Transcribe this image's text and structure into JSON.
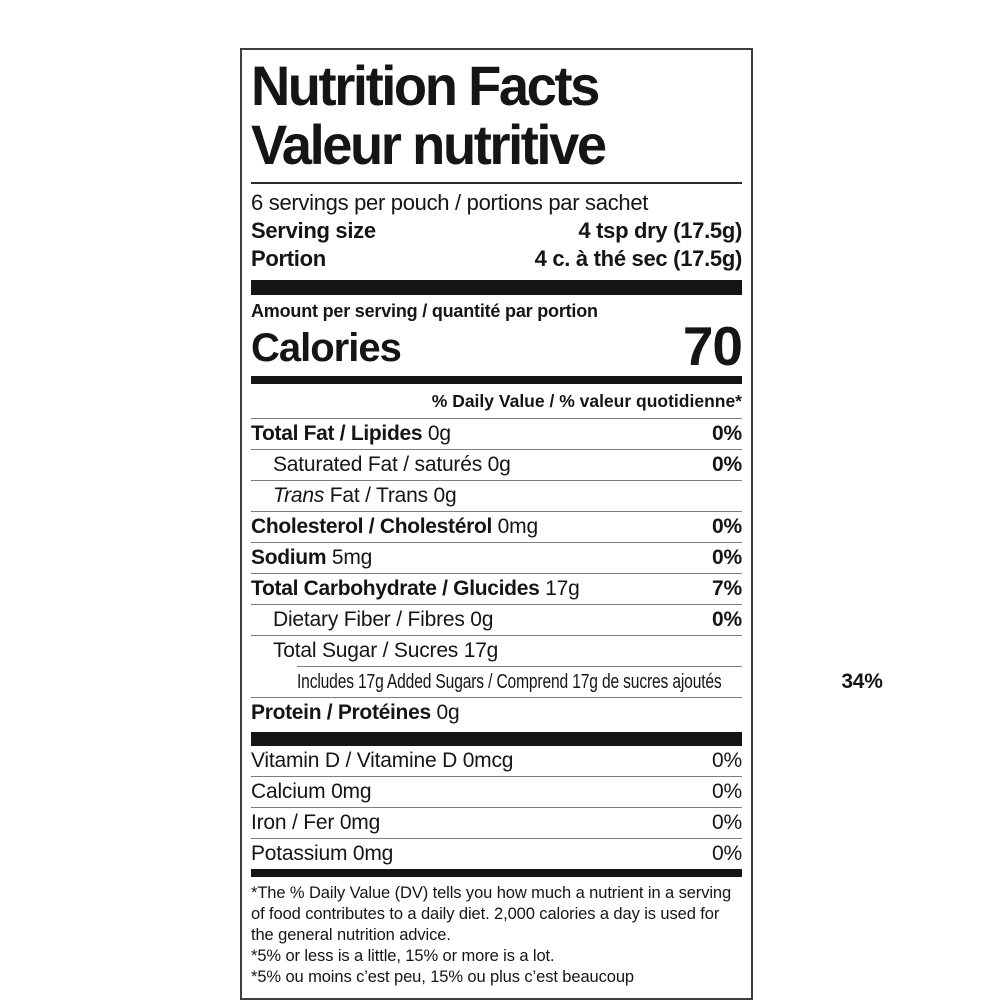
{
  "title": {
    "en": "Nutrition Facts",
    "fr": "Valeur nutritive"
  },
  "serving": {
    "servings_per_container": "6 servings per pouch / portions par sachet",
    "size_label_en": "Serving size",
    "size_value_en": "4 tsp dry (17.5g)",
    "size_label_fr": "Portion",
    "size_value_fr": "4 c. à thé sec (17.5g)"
  },
  "calories": {
    "amount_line": "Amount per serving / quantité par portion",
    "label": "Calories",
    "value": "70"
  },
  "dv_header": "% Daily Value / % valeur quotidienne*",
  "rows": [
    {
      "bold": "Total Fat / Lipides",
      "reg": " 0g",
      "dv": "0%"
    },
    {
      "reg": "Saturated Fat / saturés 0g",
      "dv": "0%"
    },
    {
      "italic": "Trans",
      "reg": " Fat / Trans 0g"
    },
    {
      "bold": "Cholesterol / Cholestérol",
      "reg": " 0mg",
      "dv": "0%"
    },
    {
      "bold": "Sodium",
      "reg": " 5mg",
      "dv": "0%"
    },
    {
      "bold": "Total Carbohydrate / Glucides",
      "reg": " 17g",
      "dv": "7%"
    },
    {
      "reg": "Dietary Fiber / Fibres 0g",
      "dv": "0%"
    },
    {
      "reg": "Total Sugar / Sucres 17g"
    },
    {
      "reg": "Includes 17g Added Sugars / Comprend 17g de sucres ajoutés",
      "dv": "34%"
    },
    {
      "bold": "Protein / Protéines",
      "reg": " 0g"
    }
  ],
  "micros": [
    {
      "reg": "Vitamin D / Vitamine D 0mcg",
      "dv": "0%"
    },
    {
      "reg": "Calcium 0mg",
      "dv": "0%"
    },
    {
      "reg": "Iron / Fer 0mg",
      "dv": "0%"
    },
    {
      "reg": "Potassium 0mg",
      "dv": "0%"
    }
  ],
  "footnotes": [
    "*The % Daily Value (DV) tells you how much a nutrient in a serving of food contributes to a daily diet. 2,000 calories a day is used for the general nutrition advice.",
    "*5% or less is a little, 15% or more is a lot.",
    "*5% ou moins c’est peu, 15% ou plus c’est beaucoup"
  ],
  "colors": {
    "text": "#151515",
    "hairline": "#7d7d7d",
    "bar": "#151515",
    "border": "#3f3f3f",
    "background": "#ffffff"
  }
}
